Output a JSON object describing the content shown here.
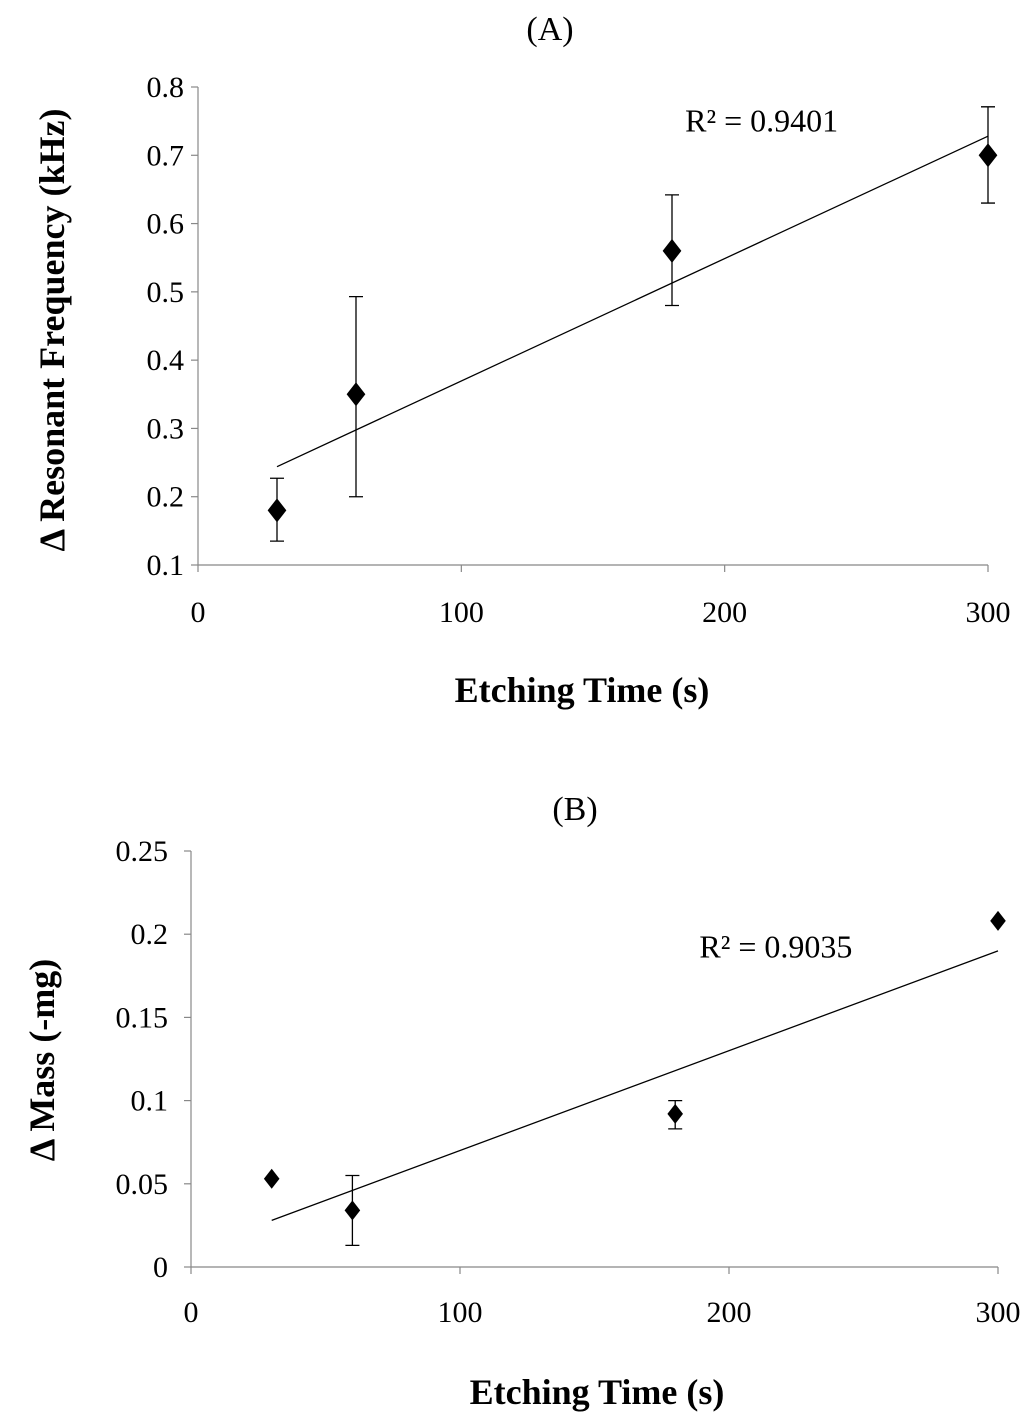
{
  "chart_data": [
    {
      "type": "scatter",
      "title": "(A)",
      "xlabel": "Etching Time (s)",
      "ylabel": "Δ Resonant Frequency (kHz)",
      "xlim": [
        0,
        300
      ],
      "ylim": [
        0.1,
        0.8
      ],
      "xticks": [
        0,
        100,
        200,
        300
      ],
      "xtick_labels": [
        "0",
        "100",
        "200",
        "300"
      ],
      "yticks": [
        0.1,
        0.2,
        0.3,
        0.4,
        0.5,
        0.6,
        0.7,
        0.8
      ],
      "ytick_labels": [
        "0.1",
        "0.2",
        "0.3",
        "0.4",
        "0.5",
        "0.6",
        "0.7",
        "0.8"
      ],
      "points": [
        {
          "x": 30,
          "y": 0.18,
          "err_low": 0.135,
          "err_high": 0.227
        },
        {
          "x": 60,
          "y": 0.35,
          "err_low": 0.2,
          "err_high": 0.493
        },
        {
          "x": 180,
          "y": 0.56,
          "err_low": 0.48,
          "err_high": 0.642
        },
        {
          "x": 300,
          "y": 0.7,
          "err_low": 0.63,
          "err_high": 0.771
        }
      ],
      "trendline": {
        "x0": 30,
        "y0": 0.244,
        "x1": 300,
        "y1": 0.728
      },
      "r2_label": "R² = 0.9401",
      "r2_anchor": {
        "x": 185,
        "y": 0.735
      }
    },
    {
      "type": "scatter",
      "title": "(B)",
      "xlabel": "Etching Time (s)",
      "ylabel": "Δ Mass (-mg)",
      "xlim": [
        0,
        300
      ],
      "ylim": [
        0,
        0.25
      ],
      "xticks": [
        0,
        100,
        200,
        300
      ],
      "xtick_labels": [
        "0",
        "100",
        "200",
        "300"
      ],
      "yticks": [
        0,
        0.05,
        0.1,
        0.15,
        0.2,
        0.25
      ],
      "ytick_labels": [
        "0",
        "0.05",
        "0.1",
        "0.15",
        "0.2",
        "0.25"
      ],
      "points": [
        {
          "x": 30,
          "y": 0.053,
          "err_low": null,
          "err_high": null
        },
        {
          "x": 60,
          "y": 0.034,
          "err_low": 0.013,
          "err_high": 0.055
        },
        {
          "x": 180,
          "y": 0.092,
          "err_low": 0.083,
          "err_high": 0.1
        },
        {
          "x": 300,
          "y": 0.208,
          "err_low": null,
          "err_high": null
        }
      ],
      "trendline": {
        "x0": 30,
        "y0": 0.028,
        "x1": 300,
        "y1": 0.19
      },
      "r2_label": "R² = 0.9035",
      "r2_anchor": {
        "x": 189,
        "y": 0.186
      }
    }
  ]
}
